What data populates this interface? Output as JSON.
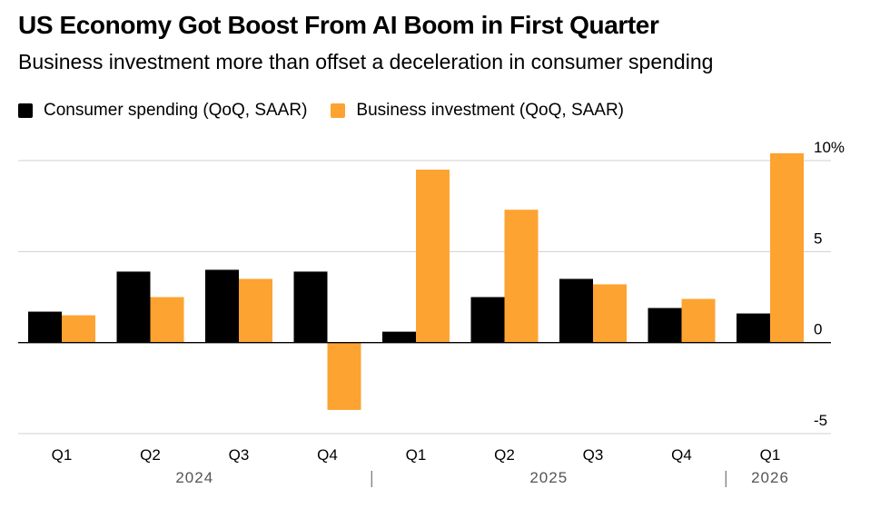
{
  "title": "US Economy Got Boost From AI Boom in First Quarter",
  "subtitle": "Business investment more than offset a deceleration in consumer spending",
  "colors": {
    "consumer": "#000000",
    "business": "#fda331",
    "grid": "#d0d0d0",
    "axis": "#000000"
  },
  "chart_data": {
    "type": "bar",
    "categories": [
      "Q1",
      "Q2",
      "Q3",
      "Q4",
      "Q1",
      "Q2",
      "Q3",
      "Q4",
      "Q1"
    ],
    "years": [
      {
        "label": "2024",
        "category_range": [
          0,
          3
        ]
      },
      {
        "label": "2025",
        "category_range": [
          4,
          7
        ]
      },
      {
        "label": "2026",
        "category_range": [
          8,
          8
        ]
      }
    ],
    "series": [
      {
        "name": "Consumer spending (QoQ, SAAR)",
        "color": "#000000",
        "values": [
          1.7,
          3.9,
          4.0,
          3.9,
          0.6,
          2.5,
          3.5,
          1.9,
          1.6
        ]
      },
      {
        "name": "Business investment (QoQ, SAAR)",
        "color": "#fda331",
        "values": [
          1.5,
          2.5,
          3.5,
          -3.7,
          9.5,
          7.3,
          3.2,
          2.4,
          10.4
        ]
      }
    ],
    "ylim": [
      -5,
      10
    ],
    "yticks": [
      {
        "value": 10,
        "label": "10%"
      },
      {
        "value": 5,
        "label": "5"
      },
      {
        "value": 0,
        "label": "0"
      },
      {
        "value": -5,
        "label": "-5"
      }
    ],
    "grid": true,
    "legend_position": "top-left",
    "axis_side": "right"
  }
}
